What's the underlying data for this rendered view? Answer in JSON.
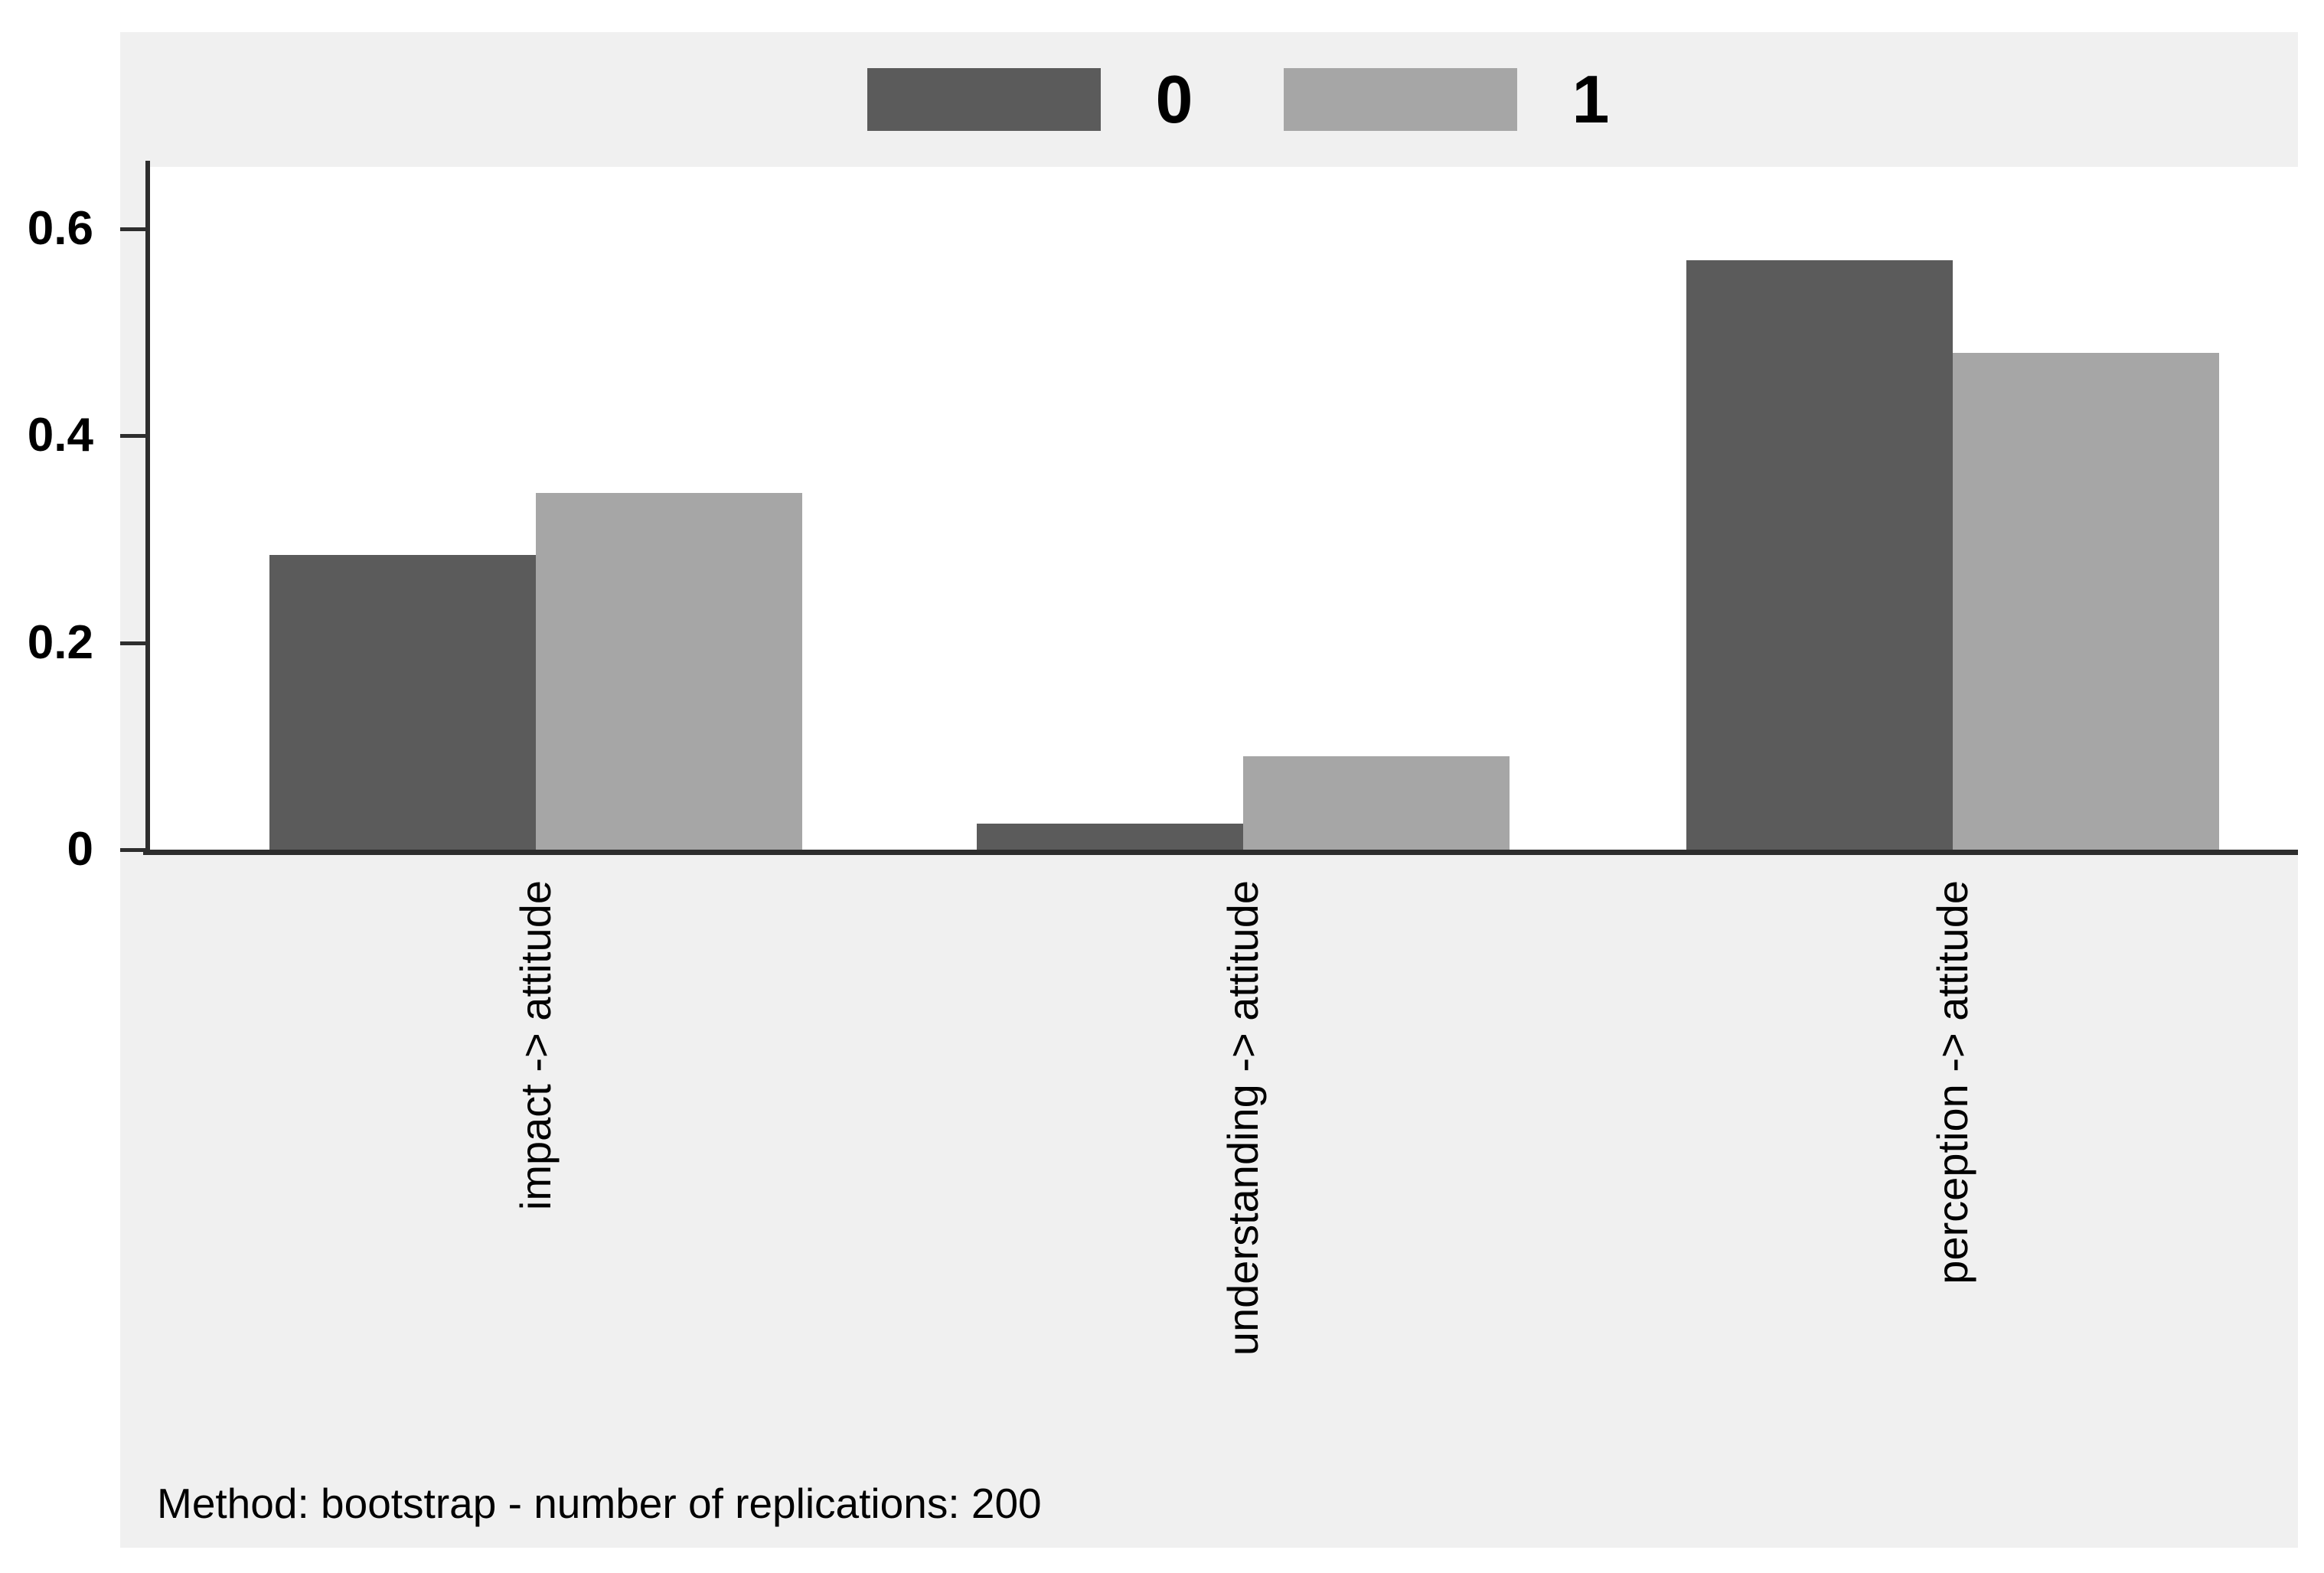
{
  "chart_data": {
    "type": "bar",
    "title": "",
    "categories": [
      "impact -> attitude",
      "understanding -> attitude",
      "perception -> attitude"
    ],
    "series": [
      {
        "name": "0",
        "color": "#5b5b5b",
        "values": [
          0.285,
          0.025,
          0.57
        ]
      },
      {
        "name": "1",
        "color": "#a6a6a6",
        "values": [
          0.345,
          0.09,
          0.48
        ]
      }
    ],
    "xlabel": "",
    "ylabel": "",
    "ylim": [
      0,
      0.66
    ],
    "yticks": [
      0,
      0.2,
      0.4,
      0.6
    ],
    "ytick_labels": [
      "0",
      "0.2",
      "0.4",
      "0.6"
    ],
    "grid": false,
    "legend_position": "top-center",
    "note": "Method: bootstrap - number of replications: 200",
    "colors": {
      "plot_background": "#ffffff",
      "region_background": "#f0f0f0",
      "axis": "#2d2d2d",
      "text": "#000000"
    },
    "layout_hints": {
      "group_center_frac": [
        0.1805,
        0.5095,
        0.8394
      ],
      "bar_width_frac": 0.1239,
      "bars_rotated_labels": true
    }
  }
}
